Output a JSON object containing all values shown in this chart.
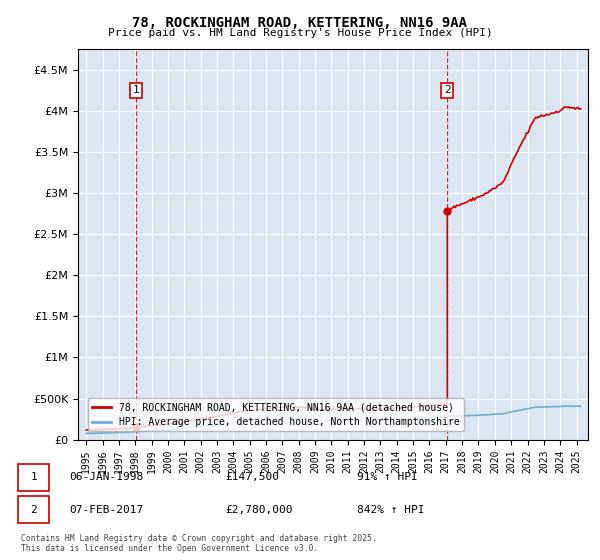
{
  "title": "78, ROCKINGHAM ROAD, KETTERING, NN16 9AA",
  "subtitle": "Price paid vs. HM Land Registry's House Price Index (HPI)",
  "background_color": "#dce6f1",
  "plot_bg_color": "#dce6f1",
  "ylim": [
    0,
    4750000
  ],
  "yticks": [
    0,
    500000,
    1000000,
    1500000,
    2000000,
    2500000,
    3000000,
    3500000,
    4000000,
    4500000
  ],
  "sale1_year": 1998.04,
  "sale1_price": 147500,
  "sale1_label": "1",
  "sale2_year": 2017.09,
  "sale2_price": 2780000,
  "sale2_label": "2",
  "hpi_line_color": "#6baed6",
  "price_line_color": "#cc0000",
  "dashed_line_color": "#cc0000",
  "legend_label_price": "78, ROCKINGHAM ROAD, KETTERING, NN16 9AA (detached house)",
  "legend_label_hpi": "HPI: Average price, detached house, North Northamptonshire",
  "footer": "Contains HM Land Registry data © Crown copyright and database right 2025.\nThis data is licensed under the Open Government Licence v3.0.",
  "xlim_left": 1994.5,
  "xlim_right": 2025.7,
  "xticks": [
    1995,
    1996,
    1997,
    1998,
    1999,
    2000,
    2001,
    2002,
    2003,
    2004,
    2005,
    2006,
    2007,
    2008,
    2009,
    2010,
    2011,
    2012,
    2013,
    2014,
    2015,
    2016,
    2017,
    2018,
    2019,
    2020,
    2021,
    2022,
    2023,
    2024,
    2025
  ]
}
